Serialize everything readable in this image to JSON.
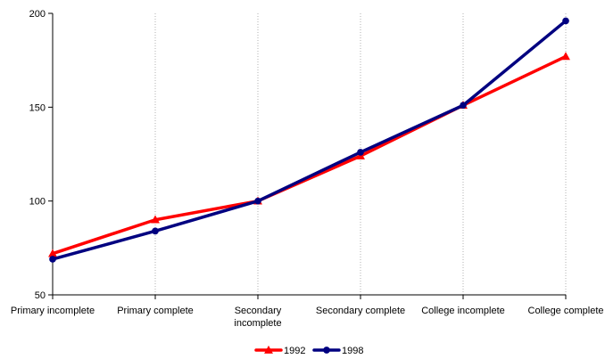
{
  "chart_data": {
    "type": "line",
    "categories": [
      [
        "Primary incomplete"
      ],
      [
        "Primary complete"
      ],
      [
        "Secondary",
        "incomplete"
      ],
      [
        "Secondary complete"
      ],
      [
        "College incomplete"
      ],
      [
        "College complete"
      ]
    ],
    "series": [
      {
        "name": "1992",
        "values": [
          72,
          90,
          100,
          124,
          151,
          177
        ],
        "color": "#ff0000",
        "marker": "triangle"
      },
      {
        "name": "1998",
        "values": [
          69,
          84,
          100,
          126,
          151,
          196
        ],
        "color": "#000080",
        "marker": "circle"
      }
    ],
    "ylim": [
      50,
      200
    ],
    "yticks": [
      50,
      100,
      150,
      200
    ],
    "grid": "vertical-dotted",
    "legend": "bottom"
  }
}
